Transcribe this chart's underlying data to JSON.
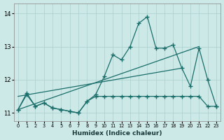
{
  "xlabel": "Humidex (Indice chaleur)",
  "xlim": [
    -0.5,
    23.5
  ],
  "ylim": [
    10.75,
    14.3
  ],
  "yticks": [
    11,
    12,
    13,
    14
  ],
  "xticks": [
    0,
    1,
    2,
    3,
    4,
    5,
    6,
    7,
    8,
    9,
    10,
    11,
    12,
    13,
    14,
    15,
    16,
    17,
    18,
    19,
    20,
    21,
    22,
    23
  ],
  "bg_color": "#cce9e7",
  "grid_color": "#aad0ce",
  "line_color": "#1a6e6a",
  "y_jagged": [
    11.1,
    11.6,
    11.2,
    11.3,
    11.15,
    11.1,
    11.05,
    11.0,
    11.35,
    11.55,
    12.1,
    12.75,
    12.6,
    13.0,
    13.7,
    13.9,
    12.95,
    12.95,
    13.05,
    12.35,
    11.8,
    12.95,
    12.0,
    11.2
  ],
  "y_flat": [
    11.1,
    11.55,
    11.2,
    11.3,
    11.15,
    11.1,
    11.05,
    11.0,
    11.35,
    11.5,
    11.5,
    11.5,
    11.5,
    11.5,
    11.5,
    11.5,
    11.5,
    11.5,
    11.5,
    11.5,
    11.5,
    11.5,
    11.2,
    11.2
  ],
  "trend1_x": [
    0,
    21
  ],
  "trend1_y": [
    11.1,
    13.0
  ],
  "trend2_x": [
    0,
    19
  ],
  "trend2_y": [
    11.5,
    12.35
  ]
}
